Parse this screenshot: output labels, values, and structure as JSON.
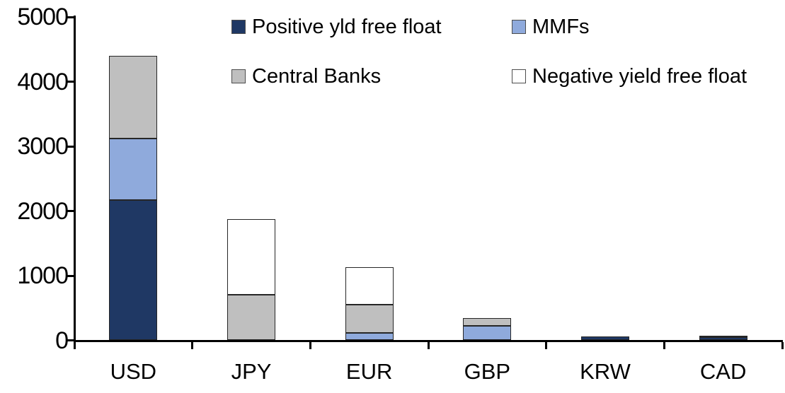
{
  "chart_data": {
    "type": "bar",
    "stacked": true,
    "title": "",
    "xlabel": "",
    "ylabel": "",
    "categories": [
      "USD",
      "JPY",
      "EUR",
      "GBP",
      "KRW",
      "CAD"
    ],
    "series": [
      {
        "name": "Positive yld free float",
        "color": "#1F3864",
        "values": [
          2170,
          0,
          0,
          0,
          60,
          45
        ]
      },
      {
        "name": "MMFs",
        "color": "#8FAADC",
        "values": [
          950,
          0,
          110,
          220,
          0,
          0
        ]
      },
      {
        "name": "Central Banks",
        "color": "#BFBFBF",
        "values": [
          1280,
          710,
          440,
          120,
          0,
          30
        ]
      },
      {
        "name": "Negative yield free float",
        "color": "#FFFFFF",
        "values": [
          0,
          1160,
          580,
          0,
          0,
          0
        ]
      }
    ],
    "totals": {
      "USD": 4400,
      "JPY": 1870,
      "EUR": 1130,
      "GBP": 340,
      "KRW": 60,
      "CAD": 75
    },
    "ylim": [
      0,
      5000
    ],
    "yticks": [
      0,
      1000,
      2000,
      3000,
      4000,
      5000
    ],
    "grid": false,
    "legend_position": "top-inside-two-columns",
    "axis_color": "#000000",
    "segment_outline_color": "#262626"
  }
}
